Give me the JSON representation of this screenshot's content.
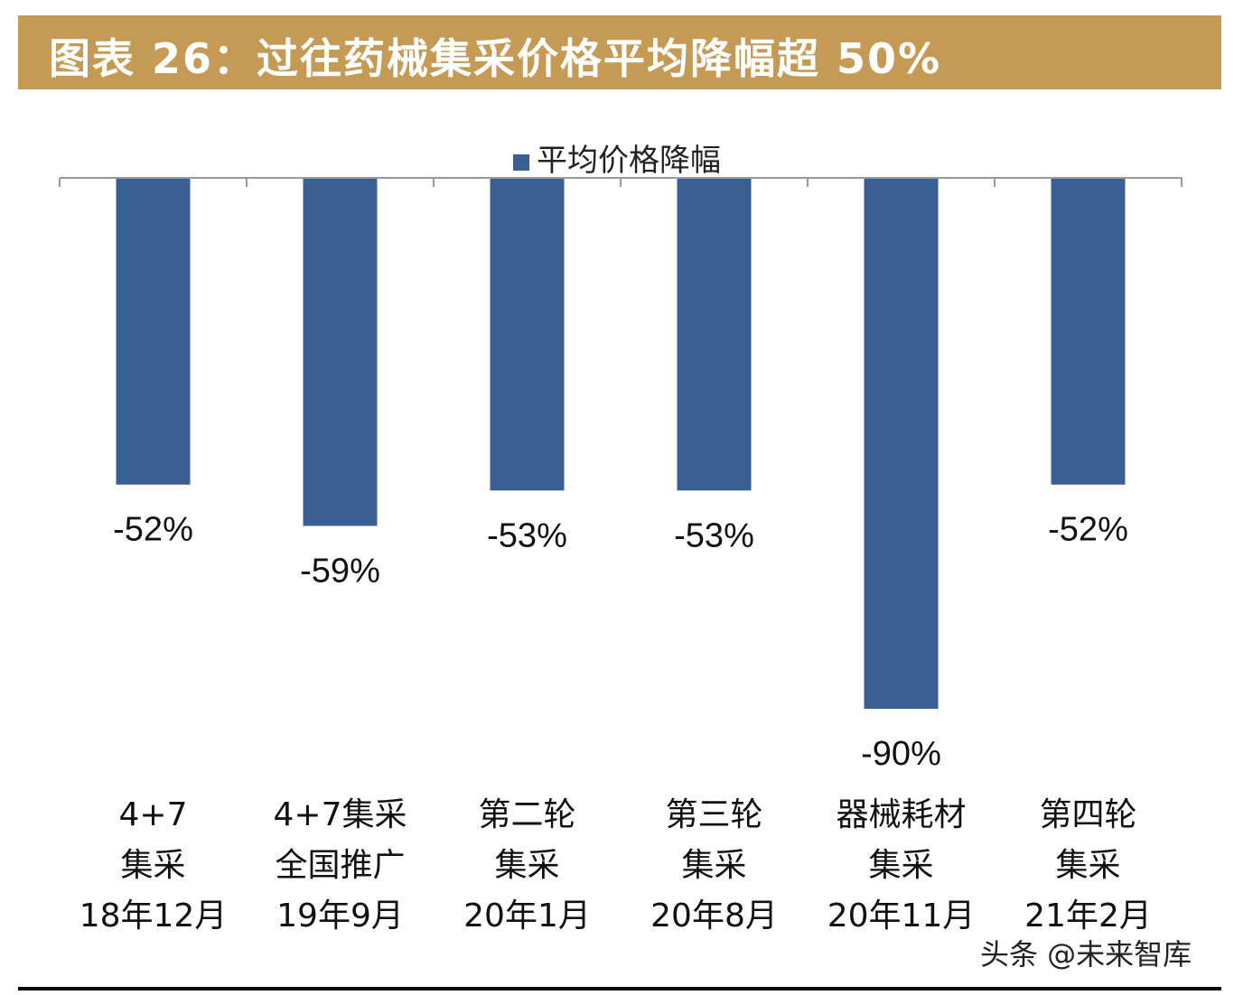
{
  "title": "图表 26：过往药械集采价格平均降幅超 50%",
  "watermark": "头条 @未来智库",
  "colors": {
    "title_bar": "#C49A55",
    "bar": "#3A5F93"
  },
  "chart_data": {
    "type": "bar",
    "categories": [
      [
        "4+7",
        "集采",
        "18年12月"
      ],
      [
        "4+7集采",
        "全国推广",
        "19年9月"
      ],
      [
        "第二轮",
        "集采",
        "20年1月"
      ],
      [
        "第三轮",
        "集采",
        "20年8月"
      ],
      [
        "器械耗材",
        "集采",
        "20年11月"
      ],
      [
        "第四轮",
        "集采",
        "21年2月"
      ]
    ],
    "series": [
      {
        "name": "平均价格降幅",
        "values": [
          -52,
          -59,
          -53,
          -53,
          -90,
          -52
        ]
      }
    ],
    "data_labels": [
      "-52%",
      "-59%",
      "-53%",
      "-53%",
      "-90%",
      "-52%"
    ],
    "legend_placement": "top",
    "grid": false,
    "ylim": [
      -90,
      0
    ]
  }
}
